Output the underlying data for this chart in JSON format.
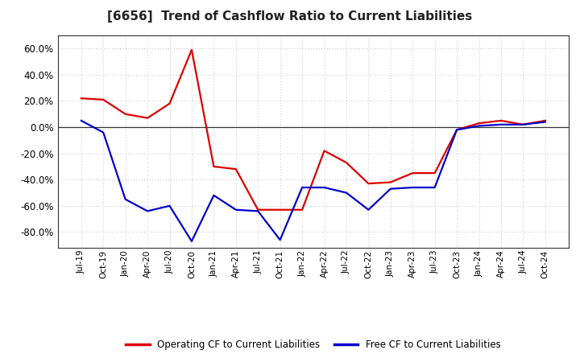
{
  "title": "[6656]  Trend of Cashflow Ratio to Current Liabilities",
  "x_labels": [
    "Jul-19",
    "Oct-19",
    "Jan-20",
    "Apr-20",
    "Jul-20",
    "Oct-20",
    "Jan-21",
    "Apr-21",
    "Jul-21",
    "Oct-21",
    "Jan-22",
    "Apr-22",
    "Jul-22",
    "Oct-22",
    "Jan-23",
    "Apr-23",
    "Jul-23",
    "Oct-23",
    "Jan-24",
    "Apr-24",
    "Jul-24",
    "Oct-24"
  ],
  "operating_cf": [
    0.22,
    0.21,
    0.1,
    0.07,
    0.18,
    0.59,
    -0.3,
    -0.32,
    -0.63,
    -0.63,
    -0.63,
    -0.18,
    -0.27,
    -0.43,
    -0.42,
    -0.35,
    -0.35,
    -0.02,
    0.03,
    0.05,
    0.02,
    0.05
  ],
  "free_cf": [
    0.05,
    -0.04,
    -0.55,
    -0.64,
    -0.6,
    -0.87,
    -0.52,
    -0.63,
    -0.64,
    -0.86,
    -0.46,
    -0.46,
    -0.5,
    -0.63,
    -0.47,
    -0.46,
    -0.46,
    -0.02,
    0.01,
    0.02,
    0.02,
    0.04
  ],
  "operating_cf_color": "#dd0000",
  "free_cf_color": "#0000cc",
  "ylim": [
    -0.92,
    0.7
  ],
  "yticks": [
    -0.8,
    -0.6,
    -0.4,
    -0.2,
    0.0,
    0.2,
    0.4,
    0.6
  ],
  "background_color": "#ffffff",
  "plot_bg_color": "#ffffff",
  "grid_color": "#aaaaaa",
  "title_fontsize": 11,
  "legend_labels": [
    "Operating CF to Current Liabilities",
    "Free CF to Current Liabilities"
  ],
  "line_width": 1.6
}
